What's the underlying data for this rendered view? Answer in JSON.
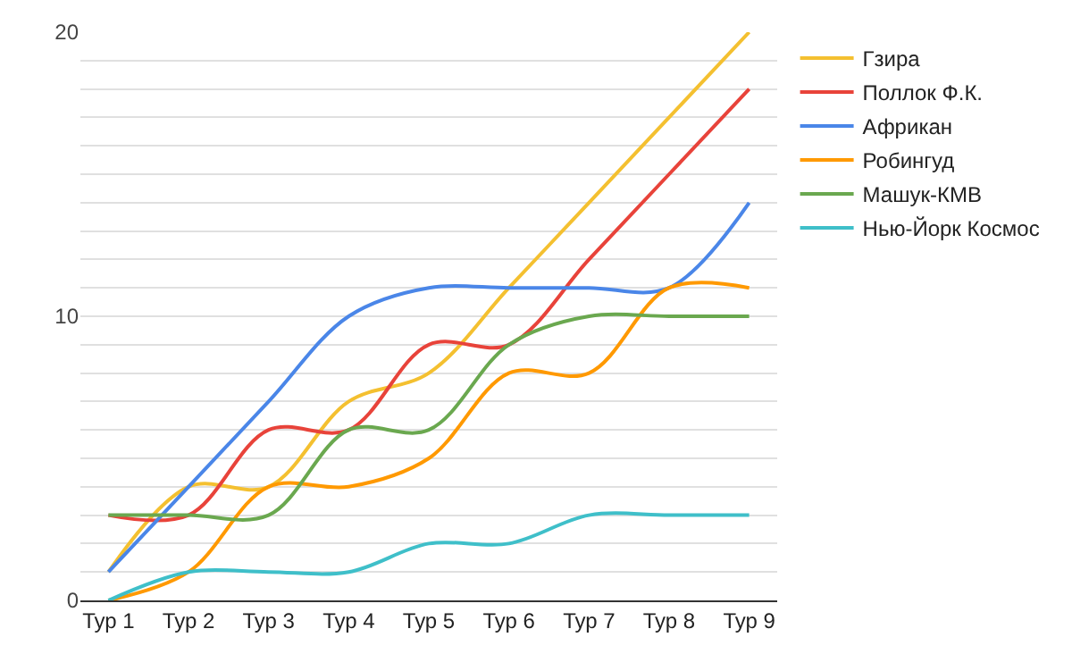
{
  "chart_data": {
    "type": "line",
    "categories": [
      "Тур 1",
      "Тур 2",
      "Тур 3",
      "Тур 4",
      "Тур 5",
      "Тур 6",
      "Тур 7",
      "Тур 8",
      "Тур 9"
    ],
    "series": [
      {
        "name": "Гзира",
        "color": "#f4c030",
        "values": [
          1,
          4,
          4,
          7,
          8,
          11,
          14,
          17,
          20
        ]
      },
      {
        "name": "Поллок Ф.К.",
        "color": "#e8433a",
        "values": [
          3,
          3,
          6,
          6,
          9,
          9,
          12,
          15,
          18
        ]
      },
      {
        "name": "Африкан",
        "color": "#4a86e8",
        "values": [
          1,
          4,
          7,
          10,
          11,
          11,
          11,
          11,
          14
        ]
      },
      {
        "name": "Робингуд",
        "color": "#ff9900",
        "values": [
          0,
          1,
          4,
          4,
          5,
          8,
          8,
          11,
          11
        ]
      },
      {
        "name": "Машук-КМВ",
        "color": "#6aa84f",
        "values": [
          3,
          3,
          3,
          6,
          6,
          9,
          10,
          10,
          10
        ]
      },
      {
        "name": "Нью-Йорк Космос",
        "color": "#3fbfc9",
        "values": [
          0,
          1,
          1,
          1,
          2,
          2,
          3,
          3,
          3
        ]
      }
    ],
    "ylim": [
      0,
      20
    ],
    "yticks": [
      0,
      {
        "value": 1,
        "label": null
      },
      {
        "value": 2,
        "label": null
      },
      {
        "value": 3,
        "label": null
      },
      {
        "value": 4,
        "label": null
      },
      {
        "value": 5,
        "label": null
      },
      {
        "value": 6,
        "label": null
      },
      {
        "value": 7,
        "label": null
      },
      {
        "value": 8,
        "label": null
      },
      {
        "value": 9,
        "label": null
      },
      10,
      {
        "value": 11,
        "label": null
      },
      {
        "value": 12,
        "label": null
      },
      {
        "value": 13,
        "label": null
      },
      {
        "value": 14,
        "label": null
      },
      {
        "value": 15,
        "label": null
      },
      {
        "value": 16,
        "label": null
      },
      {
        "value": 17,
        "label": null
      },
      {
        "value": 18,
        "label": null
      },
      {
        "value": 19,
        "label": null
      },
      20
    ],
    "grid": "y",
    "legend": "top right",
    "marker": "none",
    "line_style": "solid"
  }
}
